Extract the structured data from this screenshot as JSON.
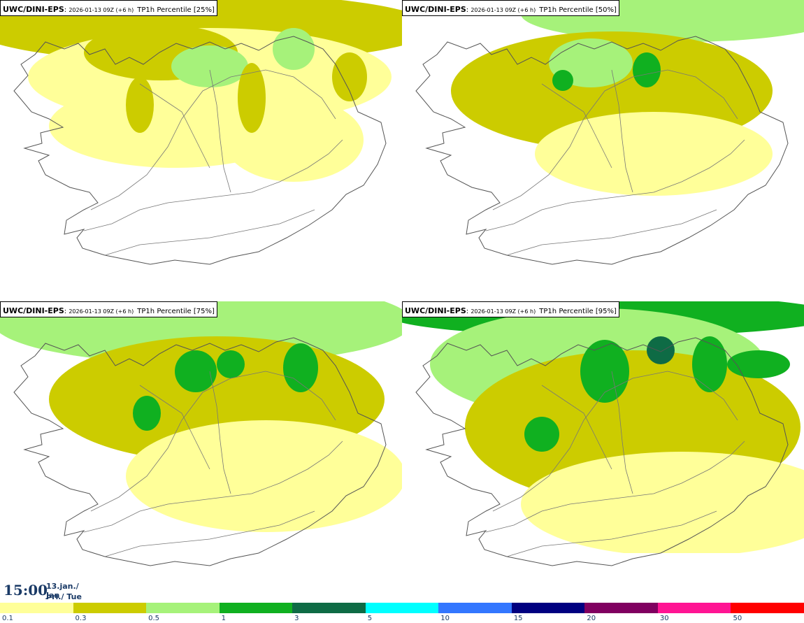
{
  "panels": [
    {
      "model": "UWC/DINI-EPS",
      "run": "2026-01-13 09Z (+6 h)",
      "param": "TP1h Percentile [25%]",
      "percentile": 25
    },
    {
      "model": "UWC/DINI-EPS",
      "run": "2026-01-13 09Z (+6 h)",
      "param": "TP1h Percentile [50%]",
      "percentile": 50
    },
    {
      "model": "UWC/DINI-EPS",
      "run": "2026-01-13 09Z (+6 h)",
      "param": "TP1h Percentile [75%]",
      "percentile": 75
    },
    {
      "model": "UWC/DINI-EPS",
      "run": "2026-01-13 09Z (+6 h)",
      "param": "TP1h Percentile [95%]",
      "percentile": 95
    }
  ],
  "time": {
    "clock": "15:00",
    "date": "13.jan./ Jan",
    "weekday": "Þri./ Tue"
  },
  "legend": {
    "bins": [
      {
        "label": "0.1",
        "color": "#ffff99"
      },
      {
        "label": "0.3",
        "color": "#cccc00"
      },
      {
        "label": "0.5",
        "color": "#a6f27a"
      },
      {
        "label": "1",
        "color": "#10b020"
      },
      {
        "label": "3",
        "color": "#0e6b45"
      },
      {
        "label": "5",
        "color": "#00ffff"
      },
      {
        "label": "10",
        "color": "#3377ff"
      },
      {
        "label": "15",
        "color": "#000080"
      },
      {
        "label": "20",
        "color": "#800060"
      },
      {
        "label": "30",
        "color": "#ff1493"
      },
      {
        "label": "50",
        "color": "#ff0000"
      }
    ]
  },
  "colors": {
    "coastline": "#555555",
    "background": "#ffffff"
  }
}
